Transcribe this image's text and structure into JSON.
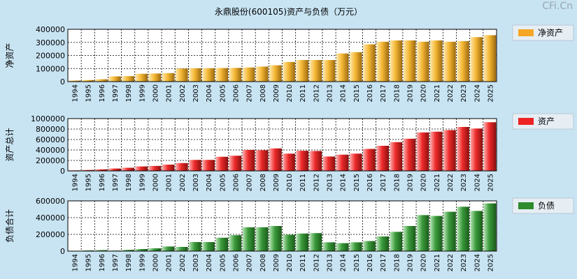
{
  "title": "永鼎股份(600105)资产与负债（万元）",
  "watermark": "CFi.Cn",
  "chart_data": [
    {
      "type": "bar",
      "ylabel": "净资产",
      "legend": "净资产",
      "color": "#f5a623",
      "ylim": [
        0,
        400000
      ],
      "yticks": [
        0,
        100000,
        200000,
        300000,
        400000
      ],
      "categories": [
        "1994",
        "1995",
        "1996",
        "1997",
        "1998",
        "1999",
        "2000",
        "2001",
        "2002",
        "2003",
        "2004",
        "2005",
        "2006",
        "2007",
        "2008",
        "2009",
        "2010",
        "2011",
        "2012",
        "2013",
        "2014",
        "2015",
        "2016",
        "2017",
        "2018",
        "2019",
        "2020",
        "2021",
        "2022",
        "2023",
        "2024",
        "2025"
      ],
      "values": [
        8000,
        12000,
        18000,
        40000,
        42000,
        60000,
        62000,
        65000,
        100000,
        102000,
        102000,
        104000,
        105000,
        108000,
        115000,
        125000,
        150000,
        165000,
        165000,
        165000,
        215000,
        225000,
        285000,
        305000,
        315000,
        315000,
        305000,
        315000,
        305000,
        310000,
        340000,
        355000
      ]
    },
    {
      "type": "bar",
      "ylabel": "资产总计",
      "legend": "资产",
      "color": "#ee2222",
      "ylim": [
        0,
        1000000
      ],
      "yticks": [
        0,
        200000,
        400000,
        600000,
        800000,
        1000000
      ],
      "categories": [
        "1994",
        "1995",
        "1996",
        "1997",
        "1998",
        "1999",
        "2000",
        "2001",
        "2002",
        "2003",
        "2004",
        "2005",
        "2006",
        "2007",
        "2008",
        "2009",
        "2010",
        "2011",
        "2012",
        "2013",
        "2014",
        "2015",
        "2016",
        "2017",
        "2018",
        "2019",
        "2020",
        "2021",
        "2022",
        "2023",
        "2024",
        "2025"
      ],
      "values": [
        10000,
        18000,
        30000,
        45000,
        60000,
        85000,
        95000,
        120000,
        150000,
        210000,
        210000,
        270000,
        290000,
        400000,
        395000,
        430000,
        330000,
        385000,
        380000,
        275000,
        310000,
        330000,
        420000,
        480000,
        550000,
        615000,
        735000,
        750000,
        780000,
        840000,
        810000,
        930000
      ]
    },
    {
      "type": "bar",
      "ylabel": "负债合计",
      "legend": "负债",
      "color": "#2e8b2e",
      "ylim": [
        0,
        600000
      ],
      "yticks": [
        0,
        200000,
        400000,
        600000
      ],
      "categories": [
        "1994",
        "1995",
        "1996",
        "1997",
        "1998",
        "1999",
        "2000",
        "2001",
        "2002",
        "2003",
        "2004",
        "2005",
        "2006",
        "2007",
        "2008",
        "2009",
        "2010",
        "2011",
        "2012",
        "2013",
        "2014",
        "2015",
        "2016",
        "2017",
        "2018",
        "2019",
        "2020",
        "2021",
        "2022",
        "2023",
        "2024",
        "2025"
      ],
      "values": [
        3000,
        8000,
        12000,
        6000,
        15000,
        25000,
        33000,
        55000,
        50000,
        108000,
        108000,
        160000,
        190000,
        285000,
        285000,
        300000,
        195000,
        210000,
        215000,
        105000,
        95000,
        105000,
        120000,
        175000,
        230000,
        300000,
        430000,
        420000,
        470000,
        530000,
        480000,
        570000
      ]
    }
  ]
}
